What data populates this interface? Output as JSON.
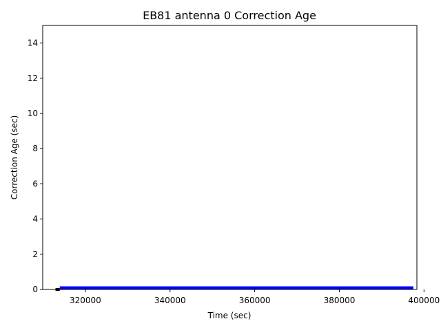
{
  "chart_data": {
    "type": "line",
    "title": "EB81 antenna 0 Correction Age",
    "xlabel": "Time (sec)",
    "ylabel": "Correction Age (sec)",
    "xlim": [
      309920,
      398320
    ],
    "xticks": [
      320000,
      340000,
      360000,
      380000,
      400000
    ],
    "ylim": [
      0,
      15
    ],
    "yticks": [
      0,
      2,
      4,
      6,
      8,
      10,
      12,
      14
    ],
    "series": [
      {
        "color": "#000000",
        "x": [
          312940,
          313950
        ],
        "values": [
          0,
          0
        ]
      },
      {
        "color": "#0000ff",
        "x": [
          313950,
          397480
        ],
        "values": [
          0.1,
          0.1
        ]
      }
    ]
  }
}
